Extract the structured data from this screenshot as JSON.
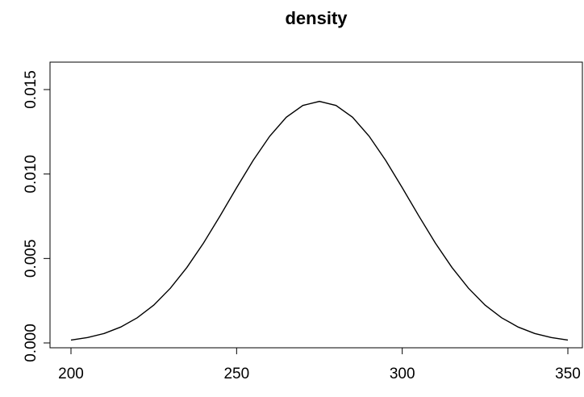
{
  "chart_data": {
    "type": "line",
    "title": "density",
    "xlabel": "",
    "ylabel": "",
    "xlim": [
      200,
      350
    ],
    "ylim": [
      0.0,
      0.016
    ],
    "x_ticks": [
      {
        "value": 200,
        "label": "200"
      },
      {
        "value": 250,
        "label": "250"
      },
      {
        "value": 300,
        "label": "300"
      },
      {
        "value": 350,
        "label": "350"
      }
    ],
    "y_ticks": [
      {
        "value": 0.0,
        "label": "0.000"
      },
      {
        "value": 0.005,
        "label": "0.005"
      },
      {
        "value": 0.01,
        "label": "0.010"
      },
      {
        "value": 0.015,
        "label": "0.015"
      }
    ],
    "grid": false,
    "series": [
      {
        "x": [
          200,
          205,
          210,
          215,
          220,
          225,
          230,
          235,
          240,
          245,
          250,
          255,
          260,
          265,
          270,
          275,
          280,
          285,
          290,
          295,
          300,
          305,
          310,
          315,
          320,
          325,
          330,
          335,
          340,
          345,
          350
        ],
        "y": [
          0.00017,
          0.00032,
          0.00056,
          0.00094,
          0.00149,
          0.00224,
          0.00324,
          0.00447,
          0.00591,
          0.00752,
          0.00919,
          0.01081,
          0.01224,
          0.01336,
          0.01406,
          0.0143,
          0.01406,
          0.01336,
          0.01224,
          0.01081,
          0.00919,
          0.00752,
          0.00591,
          0.00447,
          0.00324,
          0.00224,
          0.00149,
          0.00094,
          0.00056,
          0.00032,
          0.00017
        ]
      }
    ]
  }
}
